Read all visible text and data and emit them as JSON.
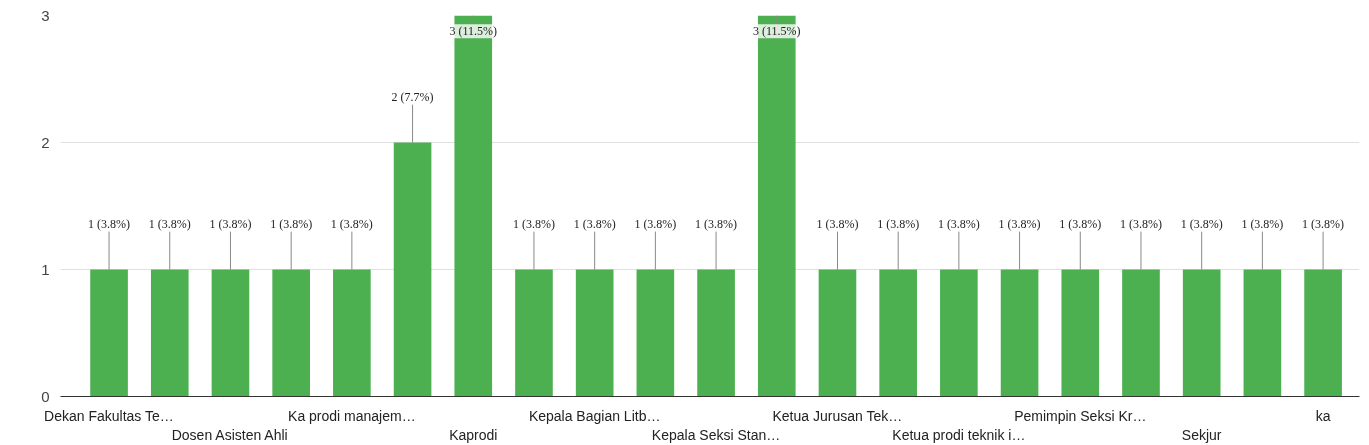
{
  "chart_data": {
    "type": "bar",
    "categories": [
      "Dekan Fakultas Te…",
      null,
      "Dosen Asisten Ahli",
      null,
      "Ka prodi manajem…",
      null,
      "Kaprodi",
      null,
      "Kepala Bagian Litb…",
      null,
      "Kepala Seksi Stan…",
      null,
      "Ketua Jurusan Tek…",
      null,
      "Ketua prodi teknik i…",
      null,
      "Pemimpin Seksi Kr…",
      null,
      "Sekjur",
      null,
      "ka"
    ],
    "values": [
      1,
      1,
      1,
      1,
      1,
      2,
      3,
      1,
      1,
      1,
      1,
      3,
      1,
      1,
      1,
      1,
      1,
      1,
      1,
      1,
      1
    ],
    "value_labels": [
      "1 (3.8%)",
      "1 (3.8%)",
      "1 (3.8%)",
      "1 (3.8%)",
      "1 (3.8%)",
      "2 (7.7%)",
      "3 (11.5%)",
      "1 (3.8%)",
      "1 (3.8%)",
      "1 (3.8%)",
      "1 (3.8%)",
      "3 (11.5%)",
      "1 (3.8%)",
      "1 (3.8%)",
      "1 (3.8%)",
      "1 (3.8%)",
      "1 (3.8%)",
      "1 (3.8%)",
      "1 (3.8%)",
      "1 (3.8%)",
      "1 (3.8%)"
    ],
    "color": "#4caf50",
    "ylim": [
      0,
      3
    ],
    "yticks": [
      0,
      1,
      2,
      3
    ],
    "grid": "y"
  }
}
